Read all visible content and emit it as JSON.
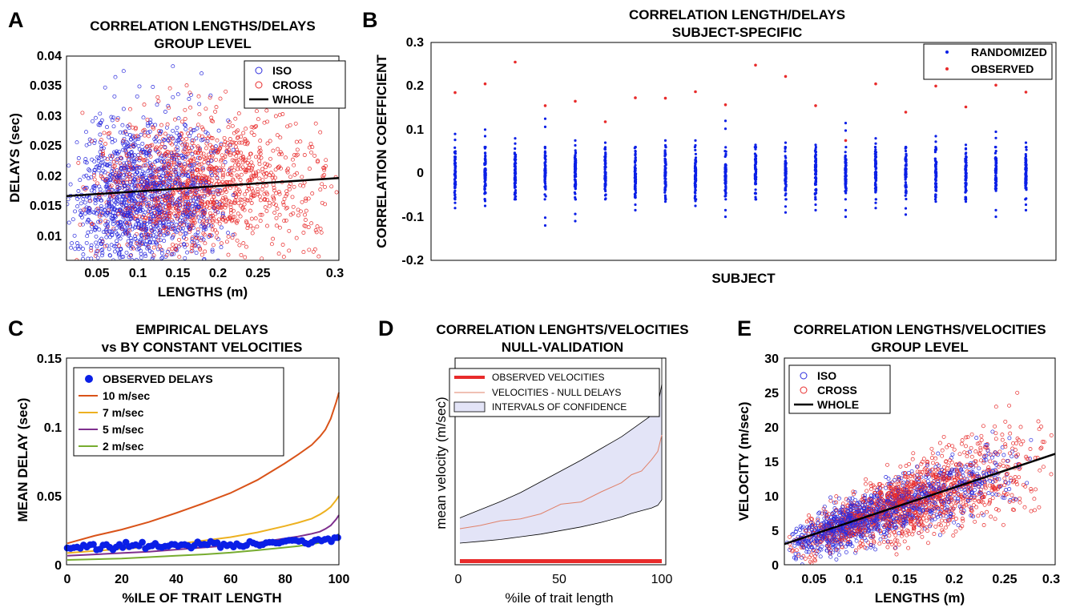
{
  "panels": {
    "A": {
      "letter": "A",
      "title1": "CORRELATION LENGTHS/DELAYS",
      "title2": "GROUP LEVEL",
      "xlabel": "LENGTHS (m)",
      "ylabel": "DELAYS (sec)",
      "xticks": [
        "0.05",
        "0.1",
        "0.15",
        "0.2",
        "0.25",
        "0.3"
      ],
      "yticks": [
        "0.01",
        "0.015",
        "0.02",
        "0.025",
        "0.03",
        "0.035",
        "0.04"
      ],
      "legend": [
        "ISO",
        "CROSS",
        "WHOLE"
      ]
    },
    "B": {
      "letter": "B",
      "title1": "CORRELATION LENGTH/DELAYS",
      "title2": "SUBJECT-SPECIFIC",
      "xlabel": "SUBJECT",
      "ylabel": "CORRELATION COEFFICIENT",
      "yticks": [
        "-0.2",
        "-0.1",
        "0",
        "0.1",
        "0.2",
        "0.3"
      ],
      "legend": [
        "RANDOMIZED",
        "OBSERVED"
      ]
    },
    "C": {
      "letter": "C",
      "title1": "EMPIRICAL DELAYS",
      "title2": "vs BY CONSTANT VELOCITIES",
      "xlabel": "%ILE OF TRAIT LENGTH",
      "ylabel": "MEAN DELAY (sec)",
      "xticks": [
        "0",
        "20",
        "40",
        "60",
        "80",
        "100"
      ],
      "yticks": [
        "0",
        "0.05",
        "0.1",
        "0.15"
      ],
      "legend": [
        "OBSERVED DELAYS",
        "10 m/sec",
        "7 m/sec",
        "5 m/sec",
        "2 m/sec"
      ]
    },
    "D": {
      "letter": "D",
      "title1": "CORRELATION LENGHTS/VELOCITIES",
      "title2": "NULL-VALIDATION",
      "xlabel": "%ile of trait length",
      "ylabel": "mean velocity (m/sec)",
      "xticks": [
        "0",
        "50",
        "100"
      ],
      "legend": [
        "OBSERVED VELOCITIES",
        "VELOCITIES - NULL DELAYS",
        "INTERVALS OF CONFIDENCE"
      ]
    },
    "E": {
      "letter": "E",
      "title1": "CORRELATION LENGTHS/VELOCITIES",
      "title2": "GROUP LEVEL",
      "xlabel": "LENGTHS (m)",
      "ylabel": "VELOCITY (m/sec)",
      "xticks": [
        "0.05",
        "0.1",
        "0.15",
        "0.2",
        "0.25",
        "0.3"
      ],
      "yticks": [
        "0",
        "5",
        "10",
        "15",
        "20",
        "25",
        "30"
      ],
      "legend": [
        "ISO",
        "CROSS",
        "WHOLE"
      ]
    }
  },
  "colors": {
    "iso": "#2b2bdd",
    "cross": "#e82b2b",
    "whole": "#000000",
    "c10": "#d95319",
    "c7": "#edb120",
    "c5": "#7e2f8e",
    "c2": "#77ac30",
    "observed": "#0a1fe6",
    "ci_fill": "#e3e4f7",
    "null_line": "#e0816a"
  },
  "chart_data": [
    {
      "panel": "A",
      "type": "scatter",
      "xlim": [
        0.03,
        0.3
      ],
      "ylim": [
        0.006,
        0.04
      ],
      "series": [
        {
          "name": "ISO",
          "cloud": {
            "n": 1400,
            "x_range": [
              0.03,
              0.2
            ],
            "x_peak": 0.09,
            "y_mean": 0.016,
            "y_sd": 0.0065
          }
        },
        {
          "name": "CROSS",
          "cloud": {
            "n": 1300,
            "x_range": [
              0.04,
              0.3
            ],
            "x_peak": 0.15,
            "y_mean": 0.0185,
            "y_sd": 0.0055
          }
        },
        {
          "name": "WHOLE",
          "line": {
            "x": [
              0.03,
              0.3
            ],
            "y": [
              0.0167,
              0.0197
            ]
          }
        }
      ]
    },
    {
      "panel": "B",
      "type": "scatter",
      "ylim": [
        -0.2,
        0.3
      ],
      "n_subjects": 20,
      "series": [
        {
          "name": "RANDOMIZED",
          "per_subject_range": [
            [
              -0.08,
              0.09
            ],
            [
              -0.075,
              0.1
            ],
            [
              -0.055,
              0.08
            ],
            [
              -0.12,
              0.125
            ],
            [
              -0.11,
              0.075
            ],
            [
              -0.06,
              0.07
            ],
            [
              -0.085,
              0.06
            ],
            [
              -0.065,
              0.075
            ],
            [
              -0.075,
              0.075
            ],
            [
              -0.1,
              0.12
            ],
            [
              -0.055,
              0.065
            ],
            [
              -0.09,
              0.07
            ],
            [
              -0.085,
              0.065
            ],
            [
              -0.1,
              0.115
            ],
            [
              -0.08,
              0.08
            ],
            [
              -0.095,
              0.06
            ],
            [
              -0.065,
              0.085
            ],
            [
              -0.065,
              0.065
            ],
            [
              -0.1,
              0.095
            ],
            [
              -0.085,
              0.07
            ]
          ]
        },
        {
          "name": "OBSERVED",
          "values": [
            0.185,
            0.205,
            0.255,
            0.155,
            0.165,
            0.118,
            0.173,
            0.172,
            0.187,
            0.157,
            0.248,
            0.222,
            0.155,
            0.075,
            0.205,
            0.14,
            0.2,
            0.152,
            0.202,
            0.186
          ]
        }
      ]
    },
    {
      "panel": "C",
      "type": "line",
      "xlim": [
        0,
        100
      ],
      "ylim": [
        0,
        0.15
      ],
      "x": [
        0,
        10,
        20,
        30,
        40,
        50,
        60,
        70,
        80,
        85,
        90,
        93,
        95,
        97,
        99,
        100
      ],
      "series": [
        {
          "name": "OBSERVED DELAYS",
          "values": [
            0.0125,
            0.0128,
            0.0132,
            0.0136,
            0.014,
            0.0145,
            0.015,
            0.0156,
            0.0165,
            0.017,
            0.0175,
            0.0178,
            0.018,
            0.0185,
            0.019,
            0.0195
          ]
        },
        {
          "name": "10 m/sec",
          "values": [
            0.0155,
            0.021,
            0.0255,
            0.031,
            0.0375,
            0.0445,
            0.052,
            0.0615,
            0.0735,
            0.08,
            0.087,
            0.093,
            0.098,
            0.106,
            0.118,
            0.125
          ]
        },
        {
          "name": "7 m/sec",
          "values": [
            0.0085,
            0.01,
            0.0115,
            0.013,
            0.015,
            0.0175,
            0.02,
            0.0235,
            0.028,
            0.0305,
            0.0335,
            0.0365,
            0.039,
            0.042,
            0.047,
            0.05
          ]
        },
        {
          "name": "5 m/sec",
          "values": [
            0.0065,
            0.0075,
            0.0085,
            0.0095,
            0.011,
            0.0125,
            0.014,
            0.016,
            0.019,
            0.0205,
            0.0225,
            0.024,
            0.026,
            0.0285,
            0.033,
            0.036
          ]
        },
        {
          "name": "2 m/sec",
          "values": [
            0.0035,
            0.004,
            0.0045,
            0.0055,
            0.0065,
            0.0075,
            0.0088,
            0.0105,
            0.0125,
            0.0135,
            0.015,
            0.016,
            0.0172,
            0.0185,
            0.0205,
            0.0225
          ]
        }
      ]
    },
    {
      "panel": "D",
      "type": "area",
      "xlim": [
        0,
        100
      ],
      "ylim": [
        0,
        100
      ],
      "x": [
        0,
        10,
        20,
        30,
        40,
        50,
        60,
        70,
        80,
        85,
        90,
        95,
        98,
        100
      ],
      "series": [
        {
          "name": "OBSERVED VELOCITIES",
          "values": [
            2,
            2,
            2,
            2,
            2,
            2,
            2,
            2,
            2,
            2,
            2,
            2,
            2,
            2
          ]
        },
        {
          "name": "VELOCITIES - NULL DELAYS",
          "values": [
            20,
            21.5,
            23.5,
            26,
            29,
            32.5,
            36.5,
            41,
            46,
            49.5,
            53,
            58,
            64,
            72
          ]
        },
        {
          "name": "INTERVALS OF CONFIDENCE",
          "lower": [
            12,
            13,
            14,
            15.5,
            17,
            19,
            21,
            23.5,
            26.5,
            28.5,
            30,
            31.5,
            33,
            36
          ],
          "upper": [
            26,
            30.5,
            35,
            40,
            46,
            52,
            58,
            64.5,
            71,
            75,
            79,
            83,
            88,
            100
          ]
        }
      ]
    },
    {
      "panel": "E",
      "type": "scatter",
      "xlim": [
        0.03,
        0.3
      ],
      "ylim": [
        0,
        30
      ],
      "series": [
        {
          "name": "ISO",
          "cloud": {
            "n": 1200,
            "x_range": [
              0.03,
              0.28
            ],
            "x_peak": 0.08,
            "slope": 52,
            "intercept": 1.0,
            "sd": 1.7
          }
        },
        {
          "name": "CROSS",
          "cloud": {
            "n": 1300,
            "x_range": [
              0.03,
              0.3
            ],
            "x_peak": 0.15,
            "slope": 48,
            "intercept": 1.5,
            "sd": 2.3
          }
        },
        {
          "name": "WHOLE",
          "line": {
            "x": [
              0.03,
              0.3
            ],
            "y": [
              3.0,
              16.1
            ]
          }
        }
      ]
    }
  ]
}
